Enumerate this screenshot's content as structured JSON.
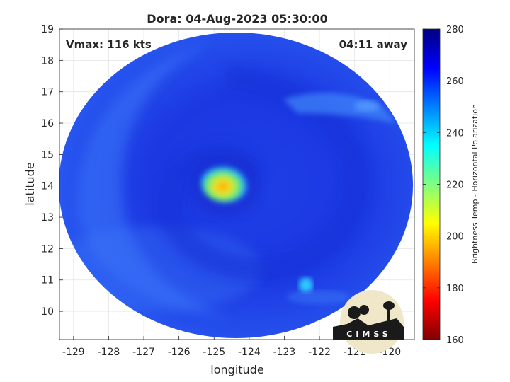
{
  "chart_data": {
    "type": "heatmap",
    "title": "Dora: 04-Aug-2023 05:30:00",
    "xlabel": "longitude",
    "ylabel": "latitude",
    "xlim": [
      -129.4,
      -119.3
    ],
    "ylim": [
      9.1,
      19
    ],
    "xticks": [
      -129,
      -128,
      -127,
      -126,
      -125,
      -124,
      -123,
      -122,
      -121,
      -120
    ],
    "yticks": [
      10,
      11,
      12,
      13,
      14,
      15,
      16,
      17,
      18,
      19
    ],
    "grid": true,
    "annotations": {
      "left": "Vmax: 116 kts",
      "right": "04:11 away"
    },
    "colorbar": {
      "label": "Brightness Temp - Horizontal Polarization",
      "range": [
        160,
        280
      ],
      "ticks": [
        160,
        180,
        200,
        220,
        240,
        260,
        280
      ],
      "colormap": "jet"
    },
    "swath": {
      "shape": "disk",
      "center": [
        -124.4,
        14.0
      ]
    },
    "storm_center": [
      -124.5,
      13.9
    ],
    "eye_min_temp": 198,
    "background_temp": 265,
    "logo_text": "CIMSS"
  }
}
